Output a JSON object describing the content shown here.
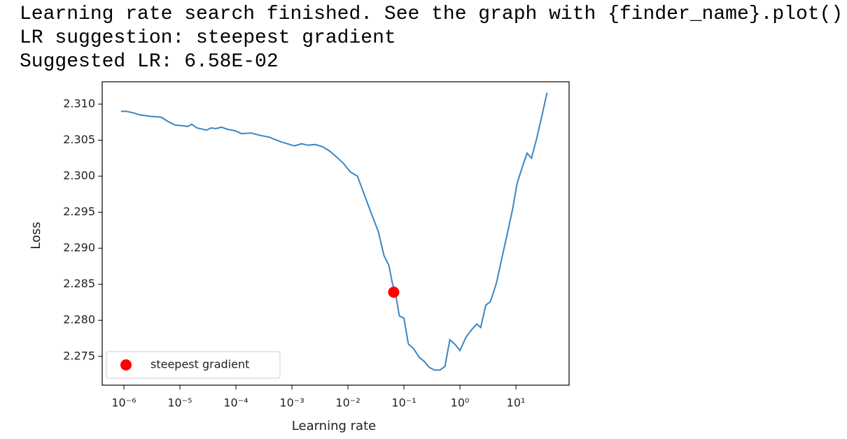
{
  "output_lines": [
    "Learning rate search finished. See the graph with {finder_name}.plot()",
    "LR suggestion: steepest gradient",
    "Suggested LR: 6.58E-02"
  ],
  "chart_data": {
    "type": "line",
    "xlabel": "Learning rate",
    "ylabel": "Loss",
    "xscale": "log",
    "xlim": [
      4.1e-07,
      89
    ],
    "ylim": [
      2.271,
      2.3131
    ],
    "xticks": [
      {
        "value": 1e-06,
        "label": "10⁻⁶"
      },
      {
        "value": 1e-05,
        "label": "10⁻⁵"
      },
      {
        "value": 0.0001,
        "label": "10⁻⁴"
      },
      {
        "value": 0.001,
        "label": "10⁻³"
      },
      {
        "value": 0.01,
        "label": "10⁻²"
      },
      {
        "value": 0.1,
        "label": "10⁻¹"
      },
      {
        "value": 1,
        "label": "10⁰"
      },
      {
        "value": 10,
        "label": "10¹"
      }
    ],
    "yticks": [
      {
        "value": 2.31,
        "label": "2.310"
      },
      2.305,
      {
        "value": 2.3,
        "label": "2.300"
      },
      2.295,
      {
        "value": 2.29,
        "label": "2.290"
      },
      2.285,
      {
        "value": 2.28,
        "label": "2.280"
      },
      2.275
    ],
    "grid": false,
    "x": [
      8.9e-07,
      1.1e-06,
      1.45e-06,
      1.94e-06,
      3e-06,
      4.6e-06,
      6.1e-06,
      8.2e-06,
      1.15e-05,
      1.37e-05,
      1.63e-05,
      2e-05,
      3e-05,
      3.6e-05,
      4.4e-05,
      5.5e-05,
      7.1e-05,
      9.8e-05,
      0.000126,
      0.000185,
      0.00026,
      0.0004,
      0.00062,
      0.00083,
      0.0011,
      0.00148,
      0.00195,
      0.0026,
      0.0035,
      0.0047,
      0.0062,
      0.0083,
      0.011,
      0.0148,
      0.0195,
      0.026,
      0.035,
      0.044,
      0.054,
      0.062,
      0.072,
      0.083,
      0.1,
      0.12,
      0.148,
      0.186,
      0.23,
      0.28,
      0.35,
      0.44,
      0.54,
      0.66,
      0.83,
      1.0,
      1.29,
      1.62,
      2.0,
      2.35,
      2.9,
      3.5,
      4.5,
      5.6,
      7.1,
      8.7,
      10.5,
      12.9,
      15.8,
      19,
      23.4,
      28,
      36
    ],
    "series": [
      {
        "color": "#3b86c2",
        "values": [
          2.309,
          2.309,
          2.3088,
          2.3085,
          2.3083,
          2.3082,
          2.3076,
          2.3071,
          2.307,
          2.3069,
          2.3072,
          2.3067,
          2.3064,
          2.3067,
          2.3066,
          2.3068,
          2.3065,
          2.3063,
          2.3059,
          2.306,
          2.3057,
          2.3054,
          2.3048,
          2.3045,
          2.3042,
          2.3045,
          2.3043,
          2.3044,
          2.3041,
          2.3035,
          2.3027,
          2.3018,
          2.3006,
          2.3,
          2.2975,
          2.2949,
          2.2923,
          2.289,
          2.2876,
          2.2852,
          2.2834,
          2.2806,
          2.2803,
          2.2767,
          2.2761,
          2.2749,
          2.2743,
          2.2735,
          2.2731,
          2.2731,
          2.2736,
          2.2773,
          2.2766,
          2.2758,
          2.2777,
          2.2787,
          2.2795,
          2.279,
          2.2821,
          2.2826,
          2.2852,
          2.2886,
          2.2922,
          2.2954,
          2.299,
          2.3012,
          2.3032,
          2.3025,
          2.3052,
          2.3078,
          2.3116
        ]
      }
    ],
    "marker": {
      "name": "steepest gradient",
      "color": "#ff0000",
      "x": 0.0658,
      "y": 2.2839
    },
    "legend": "lower left"
  }
}
